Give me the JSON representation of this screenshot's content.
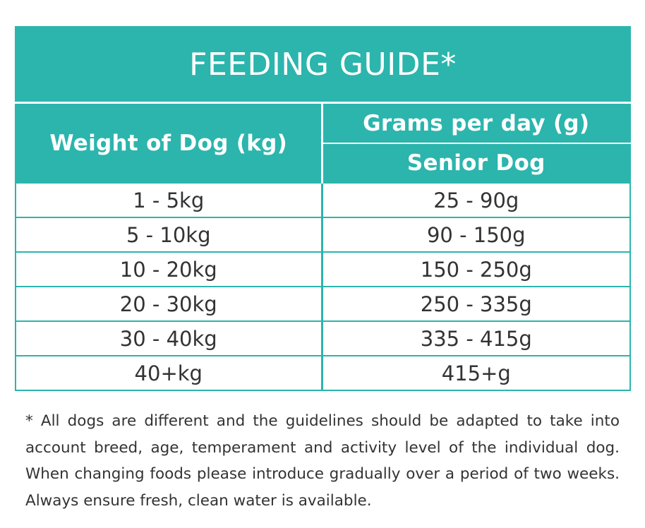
{
  "title": "FEEDING GUIDE*",
  "headers": {
    "weight": "Weight of Dog (kg)",
    "grams": "Grams per day (g)",
    "senior": "Senior Dog"
  },
  "rows": [
    {
      "weight": "1 - 5kg",
      "grams": "25 - 90g"
    },
    {
      "weight": "5 - 10kg",
      "grams": "90 - 150g"
    },
    {
      "weight": "10 - 20kg",
      "grams": "150 - 250g"
    },
    {
      "weight": "20 - 30kg",
      "grams": "250 - 335g"
    },
    {
      "weight": "30 - 40kg",
      "grams": "335 - 415g"
    },
    {
      "weight": "40+kg",
      "grams": "415+g"
    }
  ],
  "note": "* All dogs are different and the guidelines should be adapted to take into account breed, age, temperament and activity level of the individual dog. When changing foods please introduce gradually over a period of two weeks. Always ensure fresh, clean water is available.",
  "colors": {
    "accent": "#2bb5ad",
    "text": "#333333",
    "header_text": "#ffffff"
  }
}
